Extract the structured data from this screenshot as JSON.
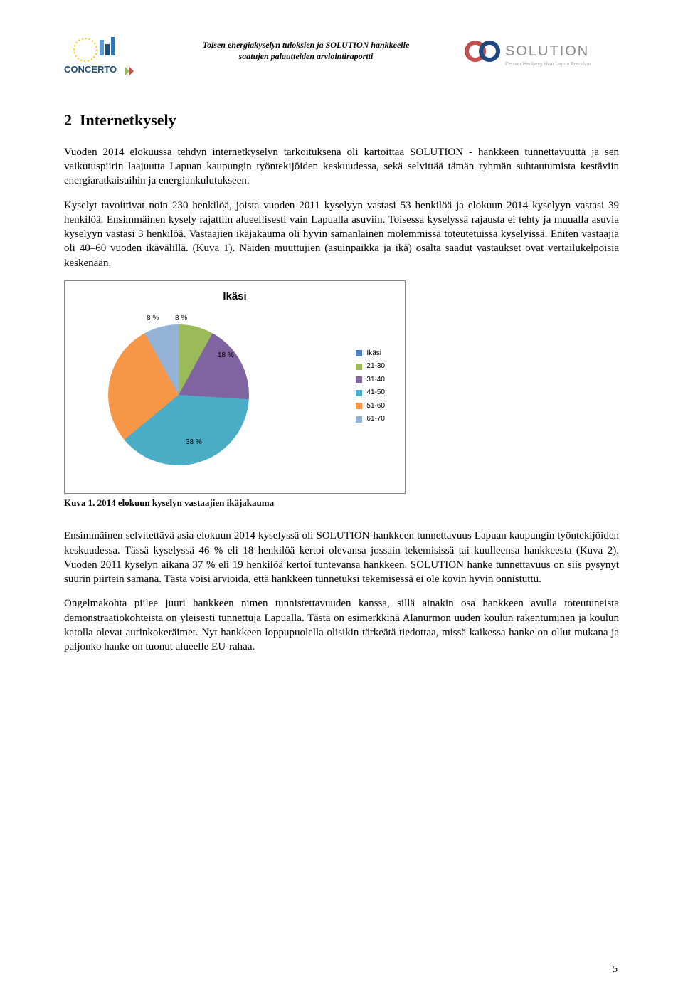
{
  "header": {
    "line1": "Toisen energiakyselyn tuloksien ja SOLUTION hankkeelle",
    "line2": "saatujen palautteiden arviointiraportti",
    "solution_brand": "SOLUTION",
    "solution_sub": "Cernier  Hartberg  Hvar  Lapua  Preddvor",
    "concerto_label": "CONCERTO"
  },
  "section": {
    "number": "2",
    "title": "Internetkysely"
  },
  "paragraphs": {
    "p1": "Vuoden 2014 elokuussa tehdyn internetkyselyn tarkoituksena oli kartoittaa SOLUTION - hankkeen tunnettavuutta ja sen vaikutuspiirin laajuutta Lapuan kaupungin työntekijöiden keskuudessa, sekä selvittää tämän ryhmän suhtautumista kestäviin energiaratkaisuihin ja energiankulutukseen.",
    "p2": "Kyselyt tavoittivat noin 230 henkilöä, joista vuoden 2011 kyselyyn vastasi 53 henkilöä ja elokuun 2014 kyselyyn vastasi 39 henkilöä. Ensimmäinen kysely rajattiin alueellisesti vain Lapualla asuviin. Toisessa kyselyssä rajausta ei tehty ja muualla asuvia kyselyyn vastasi 3 henkilöä. Vastaajien ikäjakauma oli hyvin samanlainen molemmissa toteutetuissa kyselyissä. Eniten vastaajia oli 40–60 vuoden ikävälillä. (Kuva 1). Näiden muuttujien (asuinpaikka ja ikä) osalta saadut vastaukset ovat vertailukelpoisia keskenään.",
    "caption": "Kuva 1. 2014 elokuun kyselyn vastaajien ikäjakauma",
    "p3": "Ensimmäinen selvitettävä asia  elokuun 2014 kyselyssä oli SOLUTION-hankkeen tunnettavuus Lapuan kaupungin työntekijöiden keskuudessa. Tässä kyselyssä 46 % eli 18 henkilöä kertoi olevansa jossain tekemisissä tai kuulleensa hankkeesta (Kuva 2). Vuoden 2011 kyselyn aikana 37 % eli 19 henkilöä kertoi tuntevansa hankkeen. SOLUTION hanke tunnettavuus on siis pysynyt suurin piirtein samana. Tästä voisi arvioida, että hankkeen tunnetuksi tekemisessä ei ole kovin hyvin onnistuttu.",
    "p4": "Ongelmakohta piilee juuri hankkeen nimen tunnistettavuuden kanssa, sillä ainakin osa hankkeen avulla toteutuneista demonstraatiokohteista on yleisesti tunnettuja Lapualla. Tästä on esimerkkinä Alanurmon uuden koulun rakentuminen ja koulun katolla olevat aurinkokeräimet. Nyt hankkeen loppupuolella olisikin tärkeätä tiedottaa, missä kaikessa hanke on ollut mukana ja paljonko hanke on tuonut alueelle EU-rahaa."
  },
  "chart": {
    "title": "Ikäsi",
    "type": "pie",
    "background_color": "#ffffff",
    "border_color": "#888888",
    "slices": [
      {
        "label": "Ikäsi",
        "value": 0,
        "color": "#4f81bd"
      },
      {
        "label": "21-30",
        "value": 8,
        "color": "#9bbb59",
        "pct_text": "8 %"
      },
      {
        "label": "31-40",
        "value": 18,
        "color": "#8064a2",
        "pct_text": "18 %"
      },
      {
        "label": "41-50",
        "value": 38,
        "color": "#4bacc6",
        "pct_text": "38 %"
      },
      {
        "label": "51-60",
        "value": 28,
        "color": "#f79646",
        "pct_text": "28 %"
      },
      {
        "label": "61-70",
        "value": 8,
        "color": "#94b3d7",
        "pct_text": "8 %"
      }
    ],
    "label_fontsize": 10,
    "title_fontsize": 15,
    "slice_separator_color": "#ffffff"
  },
  "page_number": "5"
}
